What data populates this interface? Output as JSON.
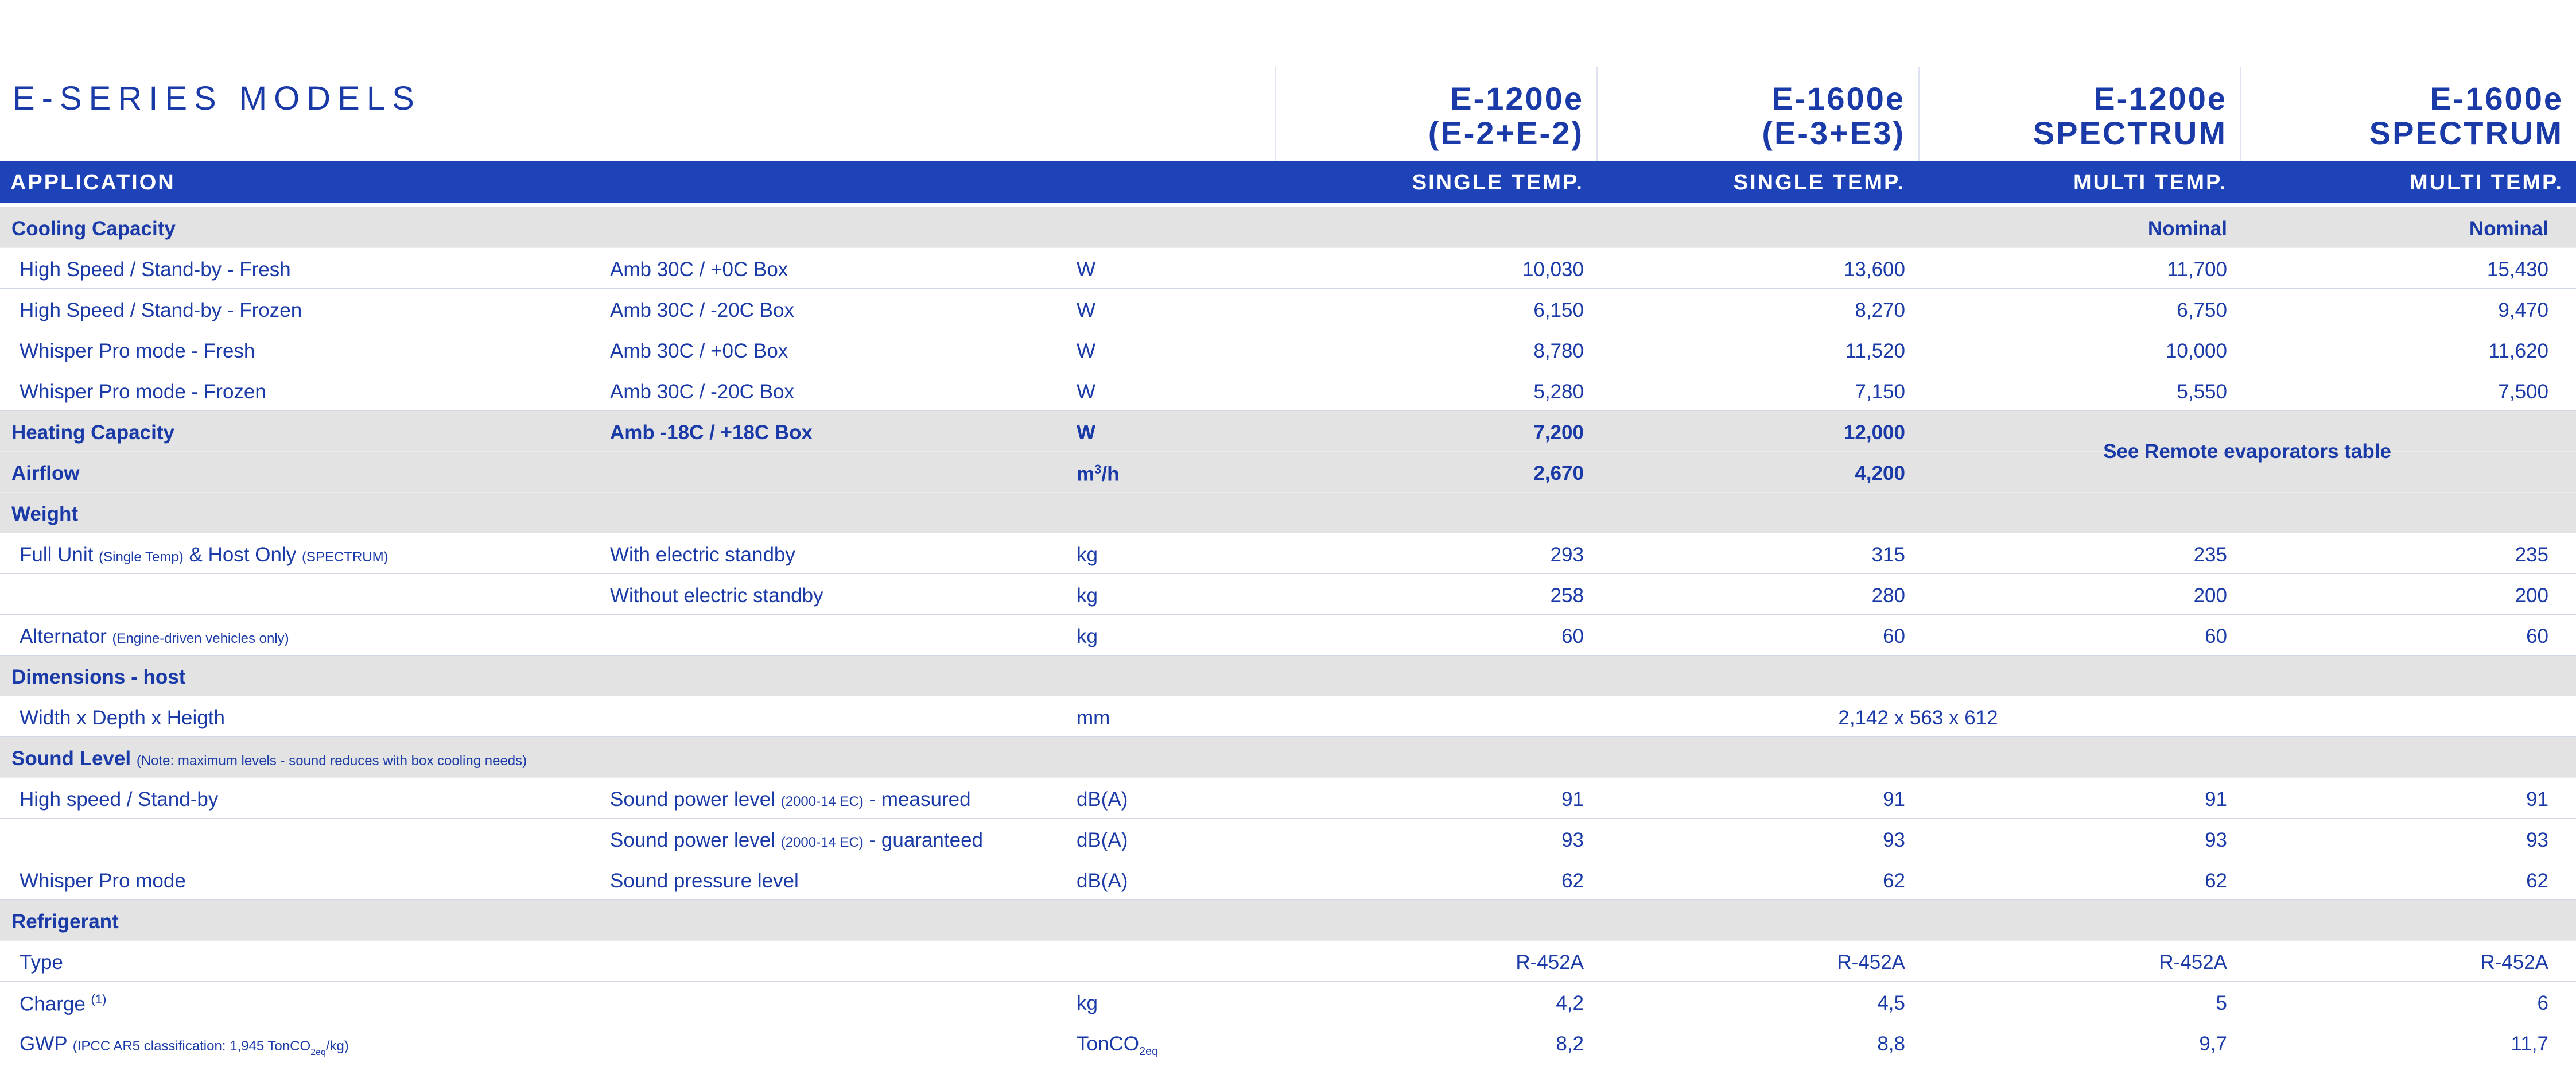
{
  "title": "E-SERIES MODELS",
  "models": [
    {
      "line1": "E-1200e",
      "line2": "(E-2+E-2)"
    },
    {
      "line1": "E-1600e",
      "line2": "(E-3+E3)"
    },
    {
      "line1": "E-1200e",
      "line2": "SPECTRUM"
    },
    {
      "line1": "E-1600e",
      "line2": "SPECTRUM"
    }
  ],
  "application": {
    "label": "APPLICATION",
    "values": [
      "SINGLE TEMP.",
      "SINGLE TEMP.",
      "MULTI TEMP.",
      "MULTI TEMP."
    ]
  },
  "cooling": {
    "header": "Cooling Capacity",
    "nominal": [
      "Nominal",
      "Nominal"
    ],
    "rows": [
      {
        "label": "High Speed / Stand-by - Fresh",
        "cond": "Amb 30C / +0C Box",
        "unit": "W",
        "values": [
          "10,030",
          "13,600",
          "11,700",
          "15,430"
        ]
      },
      {
        "label": "High Speed / Stand-by - Frozen",
        "cond": "Amb 30C / -20C Box",
        "unit": "W",
        "values": [
          "6,150",
          "8,270",
          "6,750",
          "9,470"
        ]
      },
      {
        "label": "Whisper Pro mode - Fresh",
        "cond": "Amb 30C / +0C Box",
        "unit": "W",
        "values": [
          "8,780",
          "11,520",
          "10,000",
          "11,620"
        ]
      },
      {
        "label": "Whisper Pro mode - Frozen",
        "cond": "Amb 30C / -20C Box",
        "unit": "W",
        "values": [
          "5,280",
          "7,150",
          "5,550",
          "7,500"
        ]
      }
    ]
  },
  "heating": {
    "label": "Heating Capacity",
    "cond": "Amb -18C / +18C Box",
    "unit": "W",
    "values": [
      "7,200",
      "12,000"
    ]
  },
  "airflow": {
    "label": "Airflow",
    "unit_base": "m",
    "unit_sup": "3",
    "unit_tail": "/h",
    "values": [
      "2,670",
      "4,200"
    ]
  },
  "remote_note": "See Remote evaporators table",
  "weight": {
    "header": "Weight",
    "full_unit": {
      "a": "Full Unit",
      "a_small": "(Single Temp)",
      "b": "& Host Only",
      "b_small": "(SPECTRUM)"
    },
    "with": {
      "cond": "With electric standby",
      "unit": "kg",
      "values": [
        "293",
        "315",
        "235",
        "235"
      ]
    },
    "without": {
      "cond": "Without electric standby",
      "unit": "kg",
      "values": [
        "258",
        "280",
        "200",
        "200"
      ]
    },
    "alternator": {
      "label": "Alternator",
      "small": "(Engine-driven vehicles only)",
      "unit": "kg",
      "values": [
        "60",
        "60",
        "60",
        "60"
      ]
    }
  },
  "dimensions": {
    "header": "Dimensions - host",
    "label": "Width x Depth x Heigth",
    "unit": "mm",
    "value": "2,142 x 563 x 612"
  },
  "sound": {
    "header": "Sound Level",
    "header_note": "(Note: maximum levels - sound reduces with box cooling needs)",
    "high": {
      "label": "High speed / Stand-by",
      "cond_a": "Sound power level",
      "cond_small": "(2000-14 EC)",
      "cond_b": "- measured",
      "unit": "dB(A)",
      "values": [
        "91",
        "91",
        "91",
        "91"
      ]
    },
    "guar": {
      "cond_a": "Sound power level",
      "cond_small": "(2000-14 EC)",
      "cond_b": "- guaranteed",
      "unit": "dB(A)",
      "values": [
        "93",
        "93",
        "93",
        "93"
      ]
    },
    "whisper": {
      "label": "Whisper Pro mode",
      "cond": "Sound pressure level",
      "unit": "dB(A)",
      "values": [
        "62",
        "62",
        "62",
        "62"
      ]
    }
  },
  "refrigerant": {
    "header": "Refrigerant",
    "type": {
      "label": "Type",
      "values": [
        "R-452A",
        "R-452A",
        "R-452A",
        "R-452A"
      ]
    },
    "charge": {
      "label": "Charge",
      "sup": "(1)",
      "unit": "kg",
      "values": [
        "4,2",
        "4,5",
        "5",
        "6"
      ]
    },
    "gwp": {
      "label": "GWP",
      "small_a": "(IPCC AR5 classification: 1,945 TonCO",
      "small_sub": "2eq",
      "small_b": "/kg)",
      "unit_base": "TonCO",
      "unit_sub": "2eq",
      "values": [
        "8,2",
        "8,8",
        "9,7",
        "11,7"
      ]
    }
  }
}
